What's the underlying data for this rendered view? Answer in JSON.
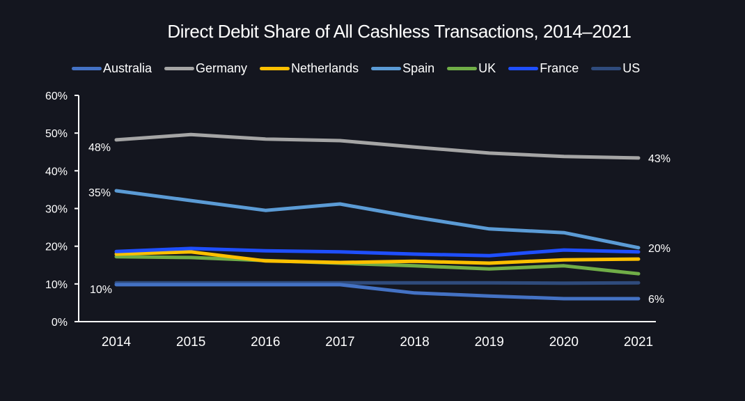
{
  "chart_data": {
    "type": "line",
    "title": "Direct Debit Share of All Cashless Transactions, 2014–2021",
    "xlabel": "",
    "ylabel": "",
    "x": [
      "2014",
      "2015",
      "2016",
      "2017",
      "2018",
      "2019",
      "2020",
      "2021"
    ],
    "ylim": [
      0,
      60
    ],
    "yticks": [
      0,
      10,
      20,
      30,
      40,
      50,
      60
    ],
    "ytick_labels": [
      "0%",
      "10%",
      "20%",
      "30%",
      "40%",
      "50%",
      "60%"
    ],
    "grid": false,
    "legend_position": "top",
    "series": [
      {
        "name": "Australia",
        "color": "#4472c4",
        "values": [
          9.8,
          9.8,
          9.8,
          9.8,
          7.6,
          6.8,
          6.1,
          6.1
        ]
      },
      {
        "name": "Germany",
        "color": "#a5a5a5",
        "values": [
          48.2,
          49.6,
          48.4,
          48.0,
          46.3,
          44.7,
          43.8,
          43.4
        ]
      },
      {
        "name": "Netherlands",
        "color": "#ffc000",
        "values": [
          17.9,
          18.5,
          16.1,
          15.7,
          16.0,
          15.5,
          16.4,
          16.6
        ]
      },
      {
        "name": "Spain",
        "color": "#5b9bd5",
        "values": [
          34.7,
          32.1,
          29.5,
          31.2,
          27.7,
          24.6,
          23.6,
          19.6
        ]
      },
      {
        "name": "UK",
        "color": "#70ad47",
        "values": [
          17.2,
          17.0,
          16.2,
          15.5,
          14.8,
          14.0,
          14.8,
          12.7
        ]
      },
      {
        "name": "France",
        "color": "#1f4fff",
        "values": [
          18.6,
          19.4,
          18.8,
          18.5,
          17.9,
          17.5,
          19.0,
          18.5
        ]
      },
      {
        "name": "US",
        "color": "#2f4b7c",
        "values": [
          10.3,
          10.3,
          10.3,
          10.3,
          10.3,
          10.3,
          10.2,
          10.3
        ]
      }
    ],
    "annotations": [
      {
        "series": "Germany",
        "x": "2014",
        "text": "48%",
        "side": "left"
      },
      {
        "series": "Spain",
        "x": "2014",
        "text": "35%",
        "side": "left"
      },
      {
        "series": "Australia",
        "x": "2014",
        "text": "10%",
        "side": "left"
      },
      {
        "series": "Germany",
        "x": "2021",
        "text": "43%",
        "side": "right"
      },
      {
        "series": "Spain",
        "x": "2021",
        "text": "20%",
        "side": "right"
      },
      {
        "series": "Australia",
        "x": "2021",
        "text": "6%",
        "side": "right"
      }
    ]
  },
  "colors": {
    "background": "#14161f",
    "axis": "#ffffff",
    "text": "#ffffff"
  }
}
